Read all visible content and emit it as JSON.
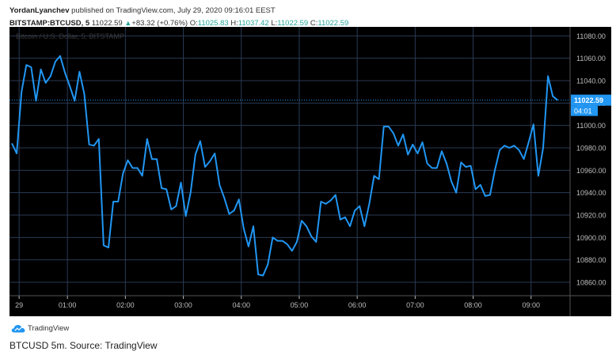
{
  "header": {
    "author": "YordanLyanchev",
    "published_text": "published on TradingView.com, July 29, 2020 09:16:01 EEST",
    "symbol": "BITSTAMP:BTCUSD, 5",
    "last_price": "11022.59",
    "change": "+83.32 (+0.76%)",
    "o_label": "O:",
    "o_value": "11025.83",
    "h_label": "H:",
    "h_value": "11037.42",
    "l_label": "L:",
    "l_value": "11022.59",
    "c_label": "C:",
    "c_value": "11022.59"
  },
  "footer": {
    "logo_text": "TradingView",
    "logo_icon": "tradingview-cloud-icon",
    "caption": "BTCUSD 5m. Source: TradingView"
  },
  "colors": {
    "background": "#000000",
    "grid": "#2a3a55",
    "line": "#2196f3",
    "axis_text": "#bfbfbf",
    "price_label_bg": "#2196f3",
    "green": "#26a69a"
  },
  "chart_data": {
    "type": "line",
    "watermark": "Bitcoin / U.S. Dollar, 5, BITSTAMP",
    "x_tick_labels": [
      "29",
      "01:00",
      "02:00",
      "03:00",
      "04:00",
      "05:00",
      "06:00",
      "07:00",
      "08:00",
      "09:00"
    ],
    "x_tick_bar_index": [
      1.5,
      11.5,
      23.5,
      35.5,
      47.5,
      59.5,
      71.5,
      83.5,
      95.5,
      107.5
    ],
    "y_ticks": [
      10860,
      10880,
      10900,
      10920,
      10940,
      10960,
      10980,
      11000,
      11020,
      11040,
      11060,
      11080
    ],
    "y_tick_labels": [
      "10860.00",
      "10880.00",
      "10900.00",
      "10920.00",
      "10940.00",
      "10960.00",
      "10980.00",
      "11000.00",
      "11020.00",
      "11040.00",
      "11060.00",
      "11080.00"
    ],
    "ylim": [
      10848,
      11088
    ],
    "grid": true,
    "last_price_label": "11022.59",
    "last_price_value": 11022.59,
    "countdown_label": "04:01",
    "series": [
      {
        "values": [
          10984,
          10975,
          11030,
          11054,
          11052,
          11022,
          11050,
          11038,
          11044,
          11057,
          11062,
          11047,
          11035,
          11022,
          11048,
          11028,
          10983,
          10982,
          10988,
          10893,
          10891,
          10932,
          10932,
          10957,
          10969,
          10962,
          10962,
          10955,
          10988,
          10970,
          10970,
          10944,
          10943,
          10925,
          10928,
          10949,
          10919,
          10940,
          10974,
          10986,
          10963,
          10968,
          10975,
          10947,
          10935,
          10921,
          10924,
          10934,
          10908,
          10892,
          10910,
          10867,
          10866,
          10876,
          10900,
          10897,
          10897,
          10894,
          10888,
          10896,
          10915,
          10910,
          10901,
          10896,
          10932,
          10930,
          10933,
          10938,
          10916,
          10918,
          10910,
          10924,
          10928,
          10910,
          10930,
          10955,
          10952,
          10999,
          10999,
          10993,
          10982,
          10992,
          10974,
          10983,
          10975,
          10985,
          10966,
          10962,
          10962,
          10977,
          10966,
          10950,
          10940,
          10967,
          10963,
          10964,
          10943,
          10947,
          10937,
          10938,
          10960,
          10978,
          10982,
          10980,
          10982,
          10978,
          10970,
          10985,
          11001,
          10955,
          10980,
          11044,
          11026,
          11022.59
        ]
      }
    ]
  }
}
